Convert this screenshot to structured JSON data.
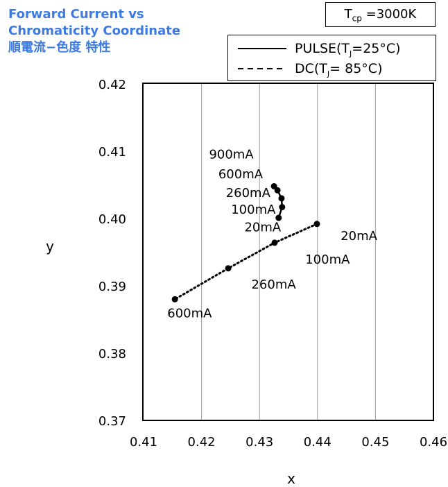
{
  "title": {
    "line1": "Forward Current vs",
    "line2": "Chromaticity Coordinate",
    "line3": "順電流−色度 特性"
  },
  "tcp_label": {
    "prefix": "T",
    "sub": "cp",
    "suffix": " =3000K"
  },
  "legend": [
    {
      "style": "solid",
      "prefix": "PULSE(T",
      "sub": "J",
      "suffix": "=25°C)"
    },
    {
      "style": "dotted",
      "prefix": "DC(T",
      "sub": "J",
      "suffix": "= 85°C)"
    }
  ],
  "chart_data": {
    "type": "scatter",
    "xlabel": "x",
    "ylabel": "y",
    "xlim": [
      0.41,
      0.46
    ],
    "ylim": [
      0.37,
      0.42
    ],
    "xticks": [
      0.41,
      0.42,
      0.43,
      0.44,
      0.45,
      0.46
    ],
    "yticks": [
      0.37,
      0.38,
      0.39,
      0.4,
      0.41,
      0.42
    ],
    "xtick_labels": [
      "0.41",
      "0.42",
      "0.43",
      "0.44",
      "0.45",
      "0.46"
    ],
    "ytick_labels": [
      "0.37",
      "0.38",
      "0.39",
      "0.40",
      "0.41",
      "0.42"
    ],
    "grid": "vertical",
    "series": [
      {
        "name": "PULSE(TJ=25°C)",
        "line": "solid",
        "points": [
          {
            "x": 0.4333,
            "y": 0.4001,
            "label": "20mA"
          },
          {
            "x": 0.4339,
            "y": 0.4017,
            "label": ""
          },
          {
            "x": 0.4338,
            "y": 0.403,
            "label": "100mA"
          },
          {
            "x": 0.4331,
            "y": 0.4042,
            "label": "260mA"
          },
          {
            "x": 0.4325,
            "y": 0.4048,
            "label": "600mA"
          }
        ]
      },
      {
        "name": "DC(TJ= 85°C)",
        "line": "dotted",
        "points": [
          {
            "x": 0.4399,
            "y": 0.3992,
            "label": "20mA"
          },
          {
            "x": 0.4326,
            "y": 0.3964,
            "label": "100mA"
          },
          {
            "x": 0.4246,
            "y": 0.3926,
            "label": "260mA"
          },
          {
            "x": 0.4154,
            "y": 0.388,
            "label": "600mA"
          }
        ]
      }
    ],
    "annotations": [
      {
        "text": "900mA",
        "x": 0.4213,
        "y": 0.4089
      },
      {
        "text": "600mA",
        "x": 0.4229,
        "y": 0.406
      },
      {
        "text": "260mA",
        "x": 0.4242,
        "y": 0.4032
      },
      {
        "text": "100mA",
        "x": 0.4251,
        "y": 0.4007
      },
      {
        "text": "20mA",
        "x": 0.4274,
        "y": 0.3981
      },
      {
        "text": "20mA",
        "x": 0.444,
        "y": 0.3968
      },
      {
        "text": "100mA",
        "x": 0.4379,
        "y": 0.3933
      },
      {
        "text": "260mA",
        "x": 0.4286,
        "y": 0.3896
      },
      {
        "text": "600mA",
        "x": 0.4141,
        "y": 0.3853
      }
    ]
  }
}
